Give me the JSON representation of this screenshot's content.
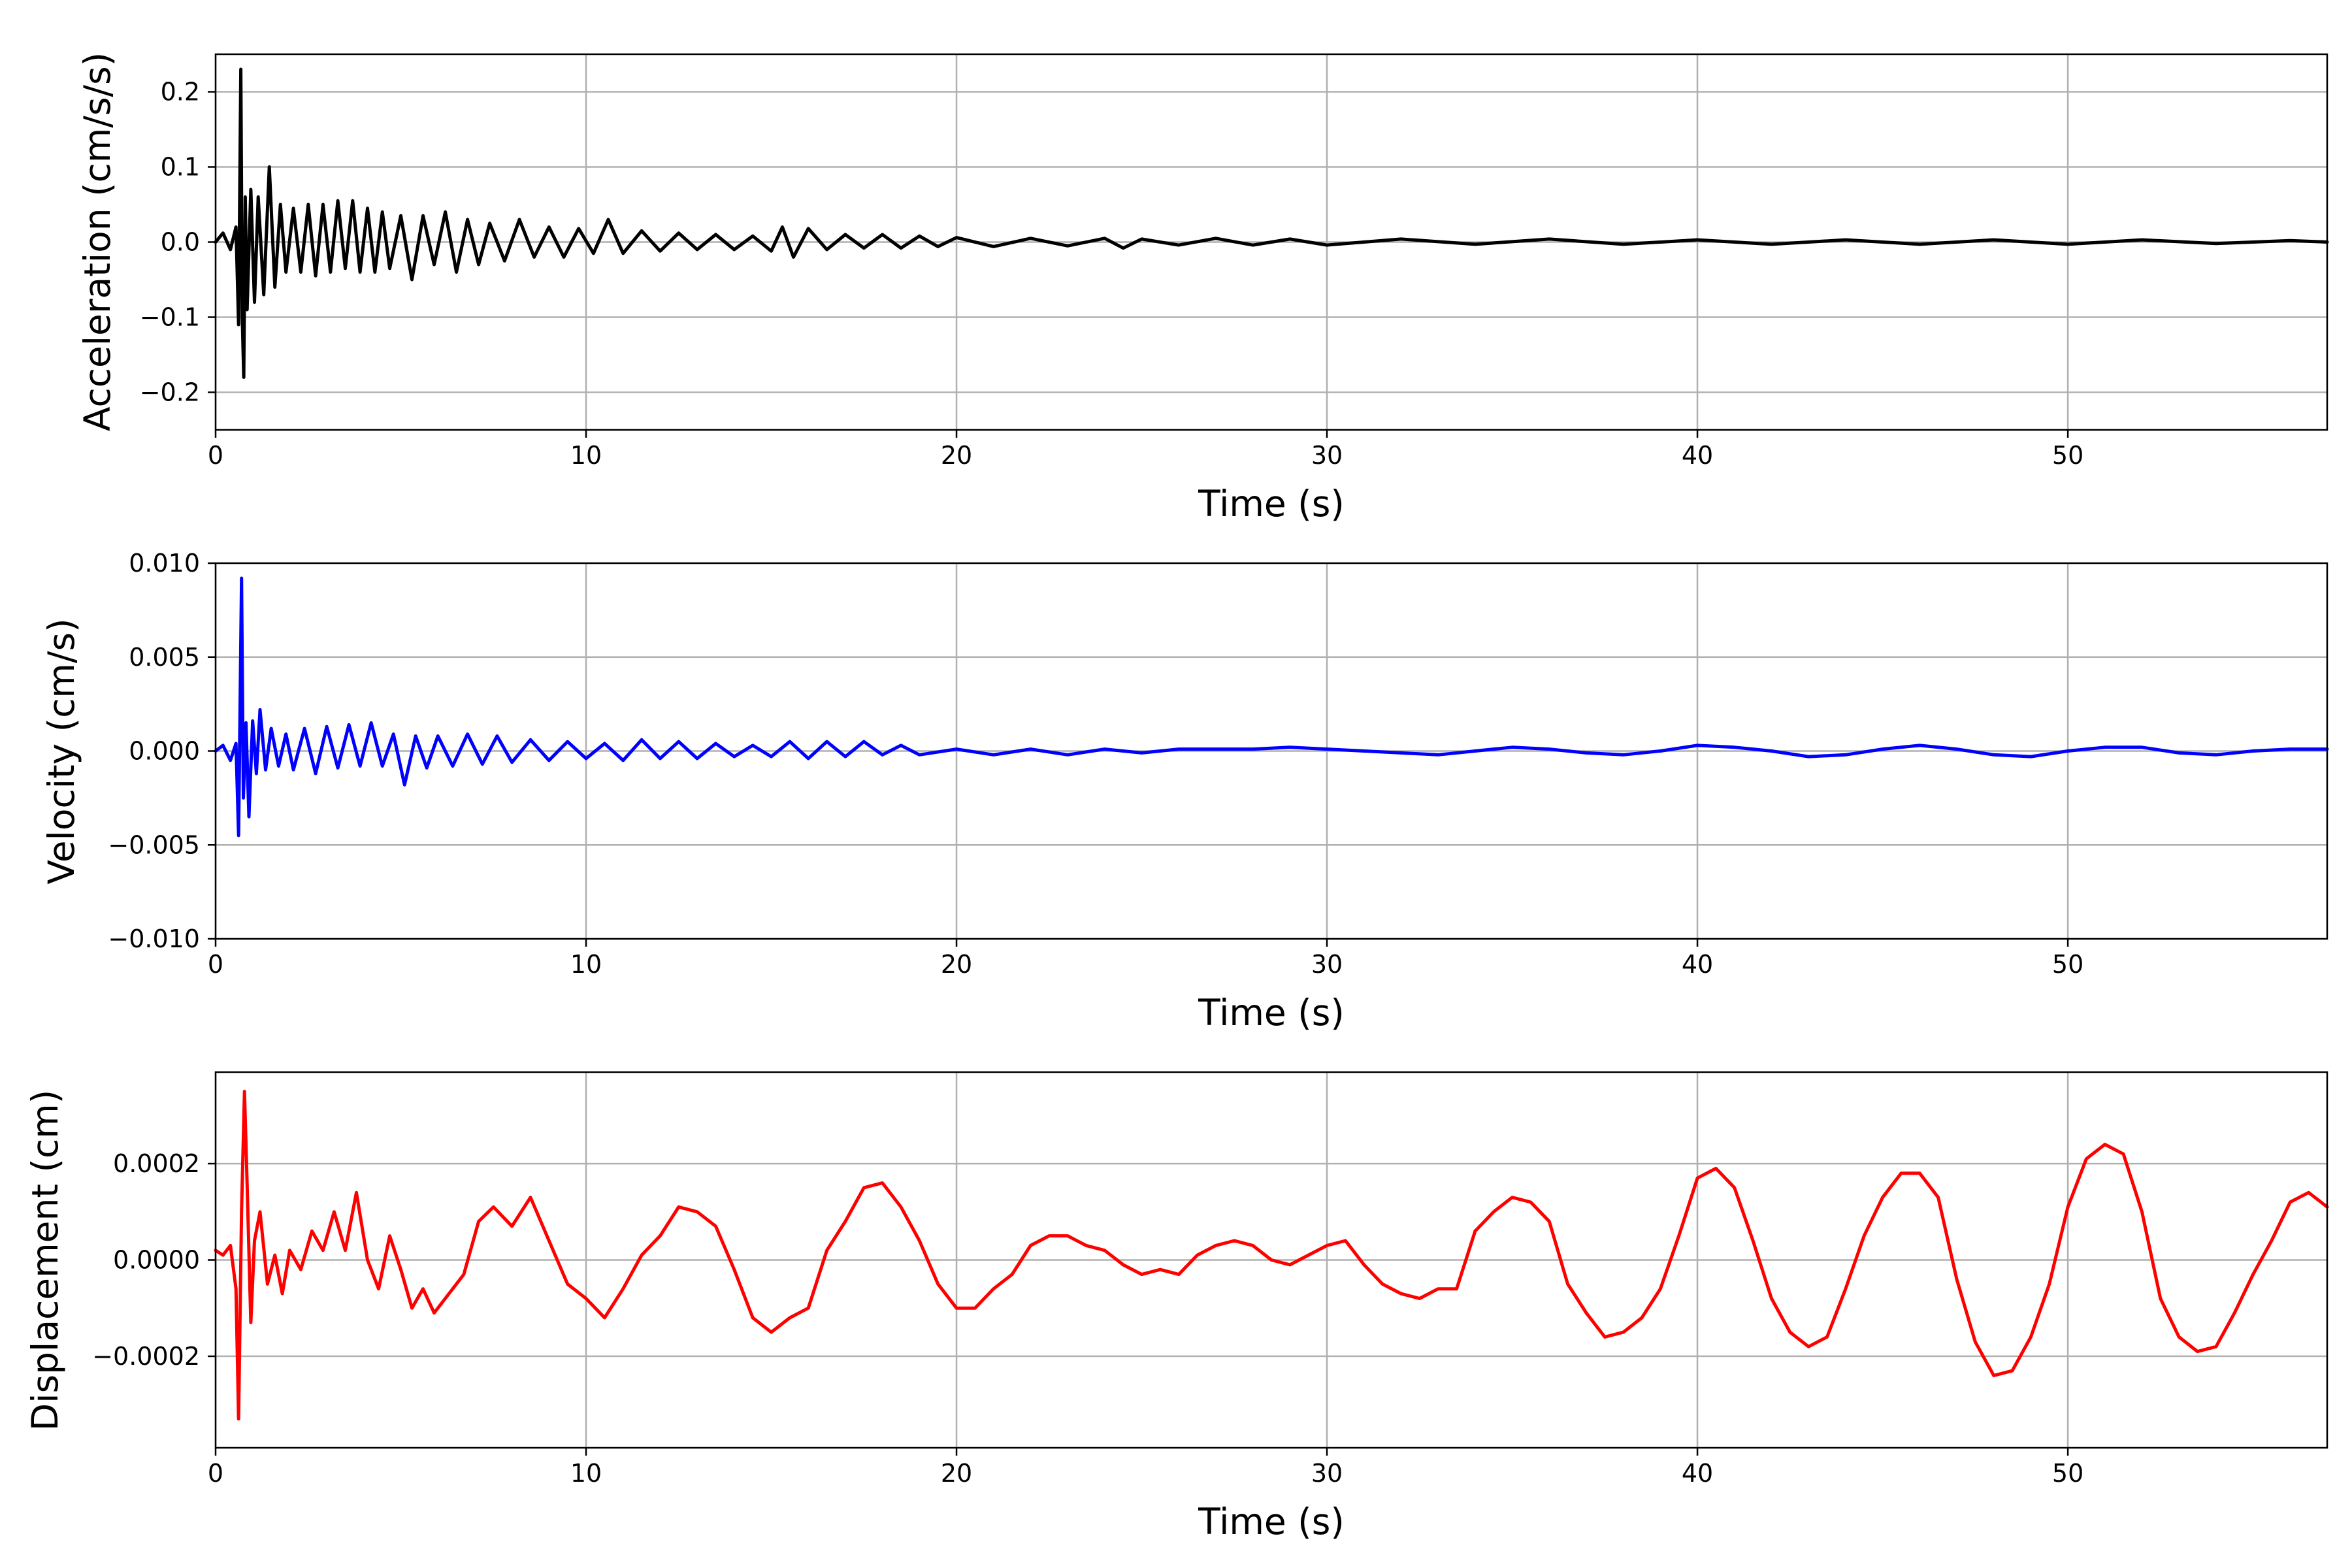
{
  "chart_data": [
    {
      "type": "line",
      "xlabel": "Time (s)",
      "ylabel": "Acceleration (cm/s/s)",
      "xlim": [
        0,
        57
      ],
      "ylim": [
        -0.25,
        0.25
      ],
      "xticks": [
        0,
        10,
        20,
        30,
        40,
        50
      ],
      "xtick_labels": [
        "0",
        "10",
        "20",
        "30",
        "40",
        "50"
      ],
      "yticks": [
        -0.2,
        -0.1,
        0.0,
        0.1,
        0.2
      ],
      "ytick_labels": [
        "−0.2",
        "−0.1",
        "0.0",
        "0.1",
        "0.2"
      ],
      "grid": true,
      "series": [
        {
          "color": "#000000",
          "x": [
            0,
            0.2,
            0.4,
            0.55,
            0.62,
            0.68,
            0.72,
            0.76,
            0.8,
            0.85,
            0.95,
            1.05,
            1.15,
            1.3,
            1.45,
            1.6,
            1.75,
            1.9,
            2.1,
            2.3,
            2.5,
            2.7,
            2.9,
            3.1,
            3.3,
            3.5,
            3.7,
            3.9,
            4.1,
            4.3,
            4.5,
            4.7,
            5.0,
            5.3,
            5.6,
            5.9,
            6.2,
            6.5,
            6.8,
            7.1,
            7.4,
            7.8,
            8.2,
            8.6,
            9.0,
            9.4,
            9.8,
            10.2,
            10.6,
            11.0,
            11.5,
            12.0,
            12.5,
            13.0,
            13.5,
            14.0,
            14.5,
            15.0,
            15.3,
            15.6,
            16.0,
            16.5,
            17.0,
            17.5,
            18.0,
            18.5,
            19.0,
            19.5,
            20.0,
            21.0,
            22.0,
            23.0,
            24.0,
            24.5,
            25.0,
            26.0,
            27.0,
            28.0,
            29.0,
            30.0,
            32.0,
            34.0,
            36.0,
            38.0,
            40.0,
            42.0,
            44.0,
            46.0,
            48.0,
            50.0,
            52.0,
            54.0,
            56.0,
            57.0
          ],
          "y": [
            0.0,
            0.012,
            -0.01,
            0.02,
            -0.11,
            0.23,
            -0.1,
            -0.18,
            0.06,
            -0.09,
            0.07,
            -0.08,
            0.06,
            -0.07,
            0.1,
            -0.06,
            0.05,
            -0.04,
            0.045,
            -0.04,
            0.05,
            -0.045,
            0.05,
            -0.04,
            0.055,
            -0.035,
            0.055,
            -0.04,
            0.045,
            -0.04,
            0.04,
            -0.035,
            0.035,
            -0.05,
            0.035,
            -0.03,
            0.04,
            -0.04,
            0.03,
            -0.03,
            0.025,
            -0.025,
            0.03,
            -0.02,
            0.02,
            -0.02,
            0.018,
            -0.015,
            0.03,
            -0.015,
            0.015,
            -0.012,
            0.012,
            -0.01,
            0.01,
            -0.01,
            0.008,
            -0.012,
            0.02,
            -0.02,
            0.018,
            -0.01,
            0.01,
            -0.008,
            0.01,
            -0.008,
            0.008,
            -0.006,
            0.006,
            -0.006,
            0.005,
            -0.005,
            0.005,
            -0.008,
            0.004,
            -0.004,
            0.005,
            -0.004,
            0.004,
            -0.004,
            0.004,
            -0.003,
            0.004,
            -0.003,
            0.003,
            -0.003,
            0.003,
            -0.003,
            0.003,
            -0.003,
            0.003,
            -0.002,
            0.002,
            0.0
          ]
        }
      ]
    },
    {
      "type": "line",
      "xlabel": "Time (s)",
      "ylabel": "Velocity (cm/s)",
      "xlim": [
        0,
        57
      ],
      "ylim": [
        -0.01,
        0.01
      ],
      "xticks": [
        0,
        10,
        20,
        30,
        40,
        50
      ],
      "xtick_labels": [
        "0",
        "10",
        "20",
        "30",
        "40",
        "50"
      ],
      "yticks": [
        -0.01,
        -0.005,
        0.0,
        0.005,
        0.01
      ],
      "ytick_labels": [
        "−0.010",
        "−0.005",
        "0.000",
        "0.005",
        "0.010"
      ],
      "grid": true,
      "series": [
        {
          "color": "#0000ff",
          "x": [
            0,
            0.2,
            0.4,
            0.55,
            0.62,
            0.7,
            0.75,
            0.82,
            0.9,
            1.0,
            1.1,
            1.2,
            1.35,
            1.5,
            1.7,
            1.9,
            2.1,
            2.4,
            2.7,
            3.0,
            3.3,
            3.6,
            3.9,
            4.2,
            4.5,
            4.8,
            5.1,
            5.4,
            5.7,
            6.0,
            6.4,
            6.8,
            7.2,
            7.6,
            8.0,
            8.5,
            9.0,
            9.5,
            10.0,
            10.5,
            11.0,
            11.5,
            12.0,
            12.5,
            13.0,
            13.5,
            14.0,
            14.5,
            15.0,
            15.5,
            16.0,
            16.5,
            17.0,
            17.5,
            18.0,
            18.5,
            19.0,
            20.0,
            21.0,
            22.0,
            23.0,
            24.0,
            25.0,
            26.0,
            27.0,
            28.0,
            29.0,
            30.0,
            31.0,
            32.0,
            33.0,
            34.0,
            35.0,
            36.0,
            37.0,
            38.0,
            39.0,
            40.0,
            41.0,
            42.0,
            43.0,
            44.0,
            45.0,
            46.0,
            47.0,
            48.0,
            49.0,
            50.0,
            51.0,
            52.0,
            53.0,
            54.0,
            55.0,
            56.0,
            57.0
          ],
          "y": [
            0.0,
            0.0003,
            -0.0005,
            0.0004,
            -0.0045,
            0.0092,
            -0.0025,
            0.0015,
            -0.0035,
            0.0016,
            -0.0012,
            0.0022,
            -0.001,
            0.0012,
            -0.0008,
            0.0009,
            -0.001,
            0.0012,
            -0.0012,
            0.0013,
            -0.0009,
            0.0014,
            -0.0008,
            0.0015,
            -0.0008,
            0.0009,
            -0.0018,
            0.0008,
            -0.0009,
            0.0008,
            -0.0008,
            0.0009,
            -0.0007,
            0.0008,
            -0.0006,
            0.0006,
            -0.0005,
            0.0005,
            -0.0004,
            0.0004,
            -0.0005,
            0.0006,
            -0.0004,
            0.0005,
            -0.0004,
            0.0004,
            -0.0003,
            0.0003,
            -0.0003,
            0.0005,
            -0.0004,
            0.0005,
            -0.0003,
            0.0005,
            -0.0002,
            0.0003,
            -0.0002,
            0.0001,
            -0.0002,
            0.0001,
            -0.0002,
            0.0001,
            -0.0001,
            0.0001,
            0.0001,
            0.0001,
            0.0002,
            0.0001,
            0.0,
            -0.0001,
            -0.0002,
            0.0,
            0.0002,
            0.0001,
            -0.0001,
            -0.0002,
            0.0,
            0.0003,
            0.0002,
            0.0,
            -0.0003,
            -0.0002,
            0.0001,
            0.0003,
            0.0001,
            -0.0002,
            -0.0003,
            0.0,
            0.0002,
            0.0002,
            -0.0001,
            -0.0002,
            0.0,
            0.0001,
            0.0001
          ]
        }
      ]
    },
    {
      "type": "line",
      "xlabel": "Time (s)",
      "ylabel": "Displacement (cm)",
      "xlim": [
        0,
        57
      ],
      "ylim": [
        -0.00039,
        0.00039
      ],
      "xticks": [
        0,
        10,
        20,
        30,
        40,
        50
      ],
      "xtick_labels": [
        "0",
        "10",
        "20",
        "30",
        "40",
        "50"
      ],
      "yticks": [
        -0.0002,
        0.0,
        0.0002
      ],
      "ytick_labels": [
        "−0.0002",
        "0.0000",
        "0.0002"
      ],
      "grid": true,
      "series": [
        {
          "color": "#ff0000",
          "x": [
            0,
            0.2,
            0.4,
            0.55,
            0.62,
            0.7,
            0.78,
            0.85,
            0.95,
            1.05,
            1.2,
            1.4,
            1.6,
            1.8,
            2.0,
            2.3,
            2.6,
            2.9,
            3.2,
            3.5,
            3.8,
            4.1,
            4.4,
            4.7,
            5.0,
            5.3,
            5.6,
            5.9,
            6.3,
            6.7,
            7.1,
            7.5,
            8.0,
            8.5,
            9.0,
            9.5,
            10.0,
            10.5,
            11.0,
            11.5,
            12.0,
            12.5,
            13.0,
            13.5,
            14.0,
            14.5,
            15.0,
            15.5,
            16.0,
            16.5,
            17.0,
            17.5,
            18.0,
            18.5,
            19.0,
            19.5,
            20.0,
            20.5,
            21.0,
            21.5,
            22.0,
            22.5,
            23.0,
            23.5,
            24.0,
            24.5,
            25.0,
            25.5,
            26.0,
            26.5,
            27.0,
            27.5,
            28.0,
            28.5,
            29.0,
            29.5,
            30.0,
            30.5,
            31.0,
            31.5,
            32.0,
            32.5,
            33.0,
            33.5,
            34.0,
            34.5,
            35.0,
            35.5,
            36.0,
            36.5,
            37.0,
            37.5,
            38.0,
            38.5,
            39.0,
            39.5,
            40.0,
            40.5,
            41.0,
            41.5,
            42.0,
            42.5,
            43.0,
            43.5,
            44.0,
            44.5,
            45.0,
            45.5,
            46.0,
            46.5,
            47.0,
            47.5,
            48.0,
            48.5,
            49.0,
            49.5,
            50.0,
            50.5,
            51.0,
            51.5,
            52.0,
            52.5,
            53.0,
            53.5,
            54.0,
            54.5,
            55.0,
            55.5,
            56.0,
            56.5,
            57.0
          ],
          "y": [
            2e-05,
            1e-05,
            3e-05,
            -6e-05,
            -0.00033,
            0.0001,
            0.00035,
            0.00016,
            -0.00013,
            4e-05,
            0.0001,
            -5e-05,
            1e-05,
            -7e-05,
            2e-05,
            -2e-05,
            6e-05,
            2e-05,
            0.0001,
            2e-05,
            0.00014,
            0.0,
            -6e-05,
            5e-05,
            -2e-05,
            -0.0001,
            -6e-05,
            -0.00011,
            -7e-05,
            -3e-05,
            8e-05,
            0.00011,
            7e-05,
            0.00013,
            4e-05,
            -5e-05,
            -8e-05,
            -0.00012,
            -6e-05,
            1e-05,
            5e-05,
            0.00011,
            0.0001,
            7e-05,
            -2e-05,
            -0.00012,
            -0.00015,
            -0.00012,
            -0.0001,
            2e-05,
            8e-05,
            0.00015,
            0.00016,
            0.00011,
            4e-05,
            -5e-05,
            -0.0001,
            -0.0001,
            -6e-05,
            -3e-05,
            3e-05,
            5e-05,
            5e-05,
            3e-05,
            2e-05,
            -1e-05,
            -3e-05,
            -2e-05,
            -3e-05,
            1e-05,
            3e-05,
            4e-05,
            3e-05,
            0.0,
            -1e-05,
            1e-05,
            3e-05,
            4e-05,
            -1e-05,
            -5e-05,
            -7e-05,
            -8e-05,
            -6e-05,
            -6e-05,
            6e-05,
            0.0001,
            0.00013,
            0.00012,
            8e-05,
            -5e-05,
            -0.00011,
            -0.00016,
            -0.00015,
            -0.00012,
            -6e-05,
            5e-05,
            0.00017,
            0.00019,
            0.00015,
            4e-05,
            -8e-05,
            -0.00015,
            -0.00018,
            -0.00016,
            -6e-05,
            5e-05,
            0.00013,
            0.00018,
            0.00018,
            0.00013,
            -4e-05,
            -0.00017,
            -0.00024,
            -0.00023,
            -0.00016,
            -5e-05,
            0.00011,
            0.00021,
            0.00024,
            0.00022,
            0.0001,
            -8e-05,
            -0.00016,
            -0.00019,
            -0.00018,
            -0.00011,
            -3e-05,
            4e-05,
            0.00012,
            0.00014,
            0.00011
          ]
        }
      ]
    }
  ]
}
